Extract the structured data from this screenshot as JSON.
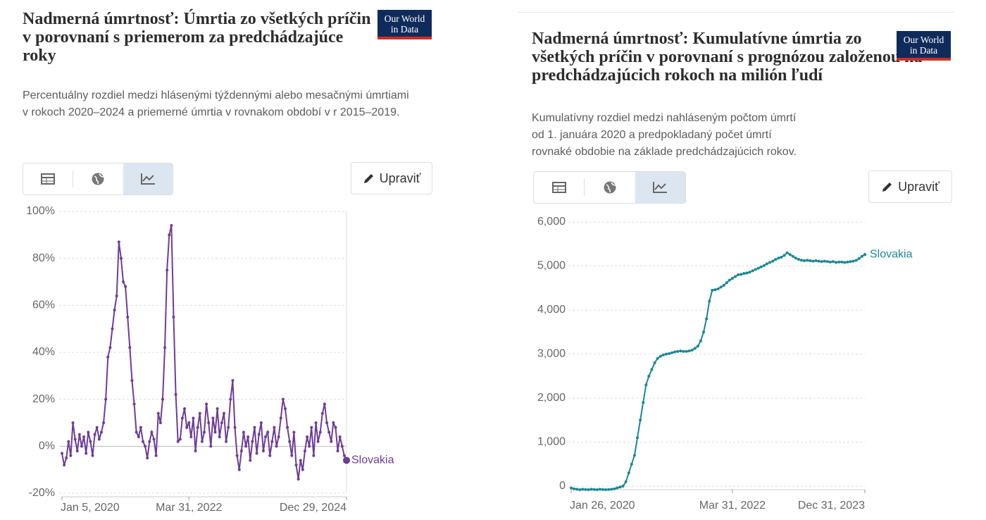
{
  "chart_data": [
    {
      "type": "line",
      "title": "Nadmerná úmrtnosť: Úmrtia zo všetkých príčin\nv porovnaní s priemerom za predchádzajúce roky",
      "subtitle": "Percentuálny rozdiel medzi hlásenými týždennými alebo mesačnými úmrtiami\nv rokoch 2020–2024 a priemerné úmrtia v rovnakom období v r 2015–2019.",
      "logo": "Our World\nin Data",
      "button": "Upraviť",
      "categories": [
        "Jan 5, 2020",
        null,
        null,
        null,
        null,
        null,
        null,
        null,
        null,
        null,
        null,
        null,
        null,
        null,
        null,
        null,
        null,
        null,
        null,
        null,
        null,
        null,
        null,
        null,
        null,
        null,
        null,
        null,
        null,
        null,
        null,
        null,
        null,
        null,
        null,
        null,
        null,
        null,
        null,
        null,
        null,
        null,
        null,
        null,
        null,
        null,
        null,
        null,
        null,
        null,
        null,
        null,
        null,
        null,
        null,
        null,
        null,
        null,
        "Mar 31, 2022",
        null,
        null,
        null,
        null,
        null,
        null,
        null,
        null,
        null,
        null,
        null,
        null,
        null,
        null,
        null,
        null,
        null,
        null,
        null,
        null,
        null,
        null,
        null,
        null,
        null,
        null,
        null,
        null,
        null,
        null,
        null,
        null,
        null,
        null,
        null,
        null,
        null,
        null,
        null,
        null,
        null,
        null,
        null,
        null,
        null,
        null,
        null,
        null,
        null,
        null,
        null,
        null,
        null,
        null,
        null,
        null,
        null,
        null,
        null,
        null,
        null,
        null,
        null,
        null,
        null,
        null,
        null,
        null,
        null,
        null,
        null,
        "Dec 29, 2024"
      ],
      "series": [
        {
          "name": "Slovakia",
          "color": "#6d3d97",
          "values": [
            -3,
            -8,
            -5,
            2,
            -4,
            10,
            3,
            -2,
            5,
            0,
            4,
            -3,
            6,
            2,
            -4,
            5,
            8,
            3,
            6,
            10,
            20,
            38,
            42,
            50,
            58,
            64,
            87,
            80,
            70,
            68,
            55,
            42,
            28,
            18,
            6,
            4,
            8,
            2,
            0,
            -5,
            2,
            6,
            3,
            -4,
            14,
            10,
            20,
            42,
            75,
            90,
            94,
            55,
            22,
            2,
            3,
            12,
            16,
            8,
            10,
            4,
            12,
            -2,
            8,
            14,
            2,
            6,
            18,
            10,
            0,
            12,
            6,
            16,
            4,
            10,
            14,
            2,
            8,
            20,
            28,
            8,
            -4,
            -10,
            -2,
            6,
            0,
            4,
            -6,
            2,
            8,
            -3,
            5,
            10,
            -2,
            4,
            6,
            -4,
            2,
            8,
            0,
            4,
            12,
            20,
            16,
            8,
            2,
            -4,
            6,
            -8,
            -14,
            -6,
            -10,
            -2,
            4,
            0,
            8,
            -4,
            10,
            2,
            6,
            14,
            18,
            10,
            6,
            2,
            10,
            8,
            -2,
            4,
            0,
            -4,
            -6
          ]
        }
      ],
      "ylim": [
        -20,
        100
      ],
      "yticks": [
        {
          "value": -20,
          "label": "-20%"
        },
        {
          "value": 0,
          "label": "0%"
        },
        {
          "value": 20,
          "label": "20%"
        },
        {
          "value": 40,
          "label": "40%"
        },
        {
          "value": 60,
          "label": "60%"
        },
        {
          "value": 80,
          "label": "80%"
        },
        {
          "value": 100,
          "label": "100%"
        }
      ],
      "grid": true
    },
    {
      "type": "line",
      "title": "Nadmerná úmrtnosť: Kumulatívne úmrtia zo všetkých príčin v porovnaní s prognózou založenou na predchádzajúcich rokoch na milión ľudí",
      "subtitle": "Kumulatívny rozdiel medzi nahláseným počtom úmrtí\nod 1. januára 2020 a predpokladaný počet úmrtí\nrovnaké obdobie na základe predchádzajúcich rokov.",
      "logo": "Our World\nin Data",
      "button": "Upraviť",
      "categories": [
        "Jan 26, 2020",
        null,
        null,
        null,
        null,
        null,
        null,
        null,
        null,
        null,
        null,
        null,
        null,
        null,
        null,
        null,
        null,
        null,
        null,
        null,
        null,
        null,
        null,
        null,
        null,
        null,
        null,
        null,
        null,
        null,
        null,
        null,
        null,
        null,
        null,
        null,
        null,
        null,
        null,
        null,
        null,
        null,
        null,
        null,
        null,
        null,
        null,
        null,
        null,
        null,
        null,
        null,
        null,
        null,
        null,
        null,
        "Mar 31, 2022",
        null,
        null,
        null,
        null,
        null,
        null,
        null,
        null,
        null,
        null,
        null,
        null,
        null,
        null,
        null,
        null,
        null,
        null,
        null,
        null,
        null,
        null,
        null,
        null,
        null,
        null,
        null,
        null,
        null,
        null,
        null,
        null,
        null,
        null,
        null,
        null,
        null,
        null,
        null,
        null,
        null,
        null,
        null,
        null,
        null,
        "Dec 31, 2023"
      ],
      "series": [
        {
          "name": "Slovakia",
          "color": "#1a8793",
          "values": [
            -40,
            -60,
            -70,
            -80,
            -70,
            -75,
            -80,
            -70,
            -75,
            -80,
            -70,
            -75,
            -80,
            -75,
            -70,
            -60,
            -40,
            -20,
            0,
            100,
            300,
            500,
            700,
            1100,
            1500,
            1900,
            2300,
            2500,
            2650,
            2800,
            2900,
            2950,
            2980,
            3000,
            3010,
            3030,
            3050,
            3060,
            3070,
            3060,
            3060,
            3070,
            3090,
            3130,
            3180,
            3300,
            3500,
            3800,
            4200,
            4450,
            4460,
            4480,
            4520,
            4560,
            4620,
            4680,
            4720,
            4760,
            4800,
            4810,
            4830,
            4840,
            4860,
            4890,
            4920,
            4950,
            4980,
            5010,
            5050,
            5080,
            5110,
            5150,
            5180,
            5200,
            5240,
            5300,
            5260,
            5220,
            5180,
            5150,
            5130,
            5120,
            5130,
            5120,
            5110,
            5120,
            5110,
            5100,
            5110,
            5100,
            5090,
            5100,
            5080,
            5090,
            5090,
            5080,
            5090,
            5100,
            5110,
            5130,
            5170,
            5220,
            5260
          ]
        }
      ],
      "ylim": [
        0,
        6000
      ],
      "yticks": [
        0,
        {
          "value": 1000,
          "label": "1,000"
        },
        {
          "value": 2000,
          "label": "2,000"
        },
        {
          "value": 3000,
          "label": "3,000"
        },
        {
          "value": 4000,
          "label": "4,000"
        },
        {
          "value": 5000,
          "label": "5,000"
        },
        {
          "value": 6000,
          "label": "6,000"
        }
      ],
      "grid": true
    }
  ]
}
